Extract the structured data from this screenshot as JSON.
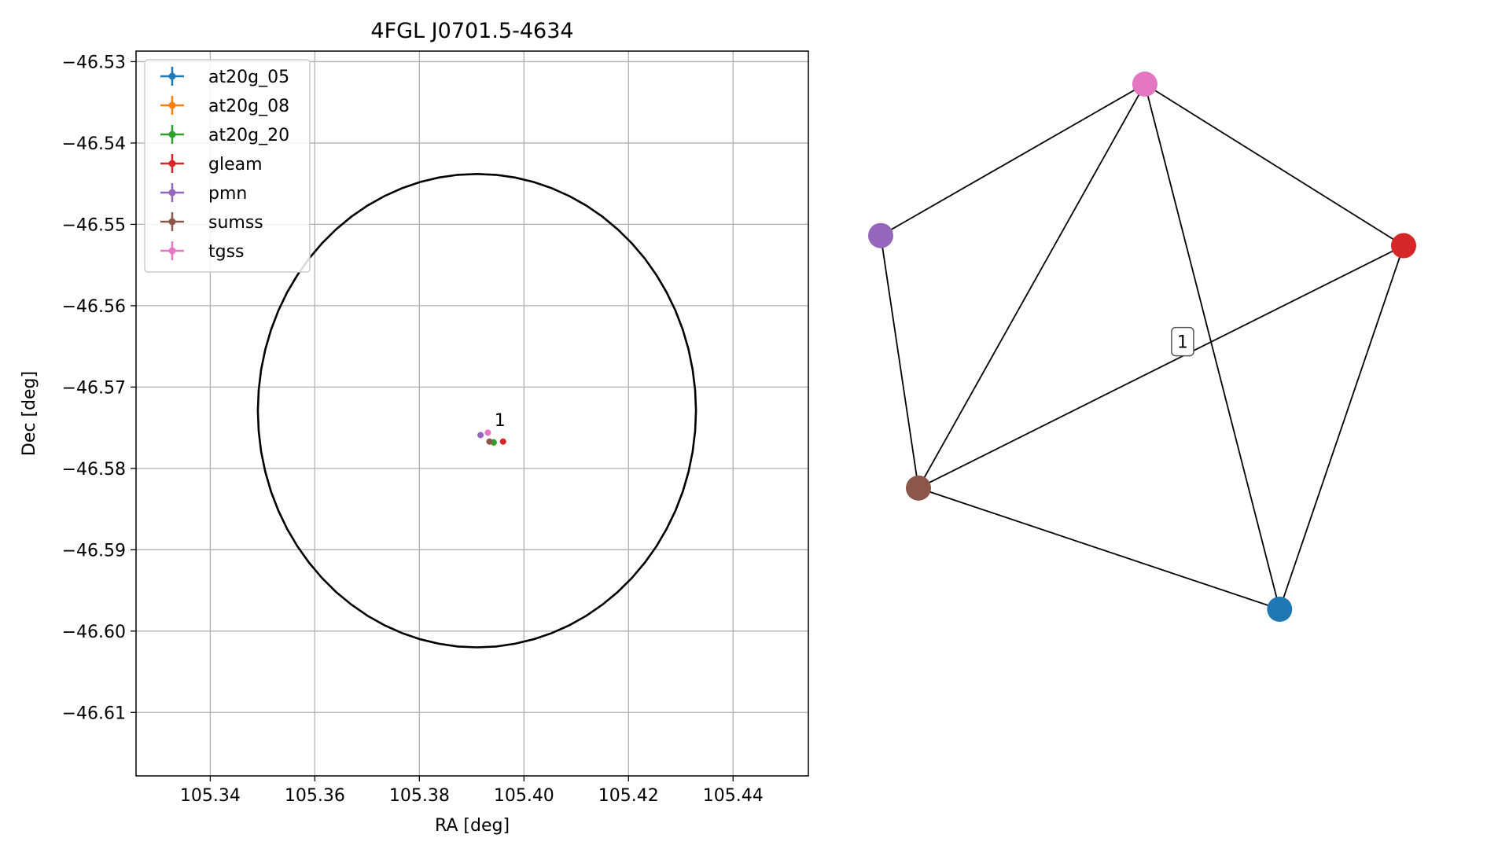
{
  "chart_data": [
    {
      "type": "scatter",
      "title": "4FGL J0701.5-4634",
      "xlabel": "RA [deg]",
      "ylabel": "Dec [deg]",
      "xlim": [
        105.3258,
        105.4544
      ],
      "ylim": [
        -46.6178,
        -46.5287
      ],
      "xticks": [
        105.34,
        105.36,
        105.38,
        105.4,
        105.42,
        105.44
      ],
      "xtick_labels": [
        "105.34",
        "105.36",
        "105.38",
        "105.40",
        "105.42",
        "105.44"
      ],
      "yticks": [
        -46.53,
        -46.54,
        -46.55,
        -46.56,
        -46.57,
        -46.58,
        -46.59,
        -46.6,
        -46.61
      ],
      "ytick_labels": [
        "−46.53",
        "−46.54",
        "−46.55",
        "−46.56",
        "−46.57",
        "−46.58",
        "−46.59",
        "−46.60",
        "−46.61"
      ],
      "grid": true,
      "legend_placement": "upper-left",
      "ellipse": {
        "center": [
          105.391,
          -46.5729
        ],
        "semi_ra": 0.0419,
        "semi_dec": 0.0291
      },
      "series": [
        {
          "name": "at20g_05",
          "color": "#1f77b4",
          "points": [
            {
              "x": 105.3942,
              "y": -46.5768
            }
          ]
        },
        {
          "name": "at20g_08",
          "color": "#ff7f0e",
          "points": [
            {
              "x": 105.3942,
              "y": -46.5768
            }
          ]
        },
        {
          "name": "at20g_20",
          "color": "#2ca02c",
          "points": [
            {
              "x": 105.3942,
              "y": -46.5768
            }
          ]
        },
        {
          "name": "gleam",
          "color": "#d62728",
          "points": [
            {
              "x": 105.396,
              "y": -46.5767
            }
          ]
        },
        {
          "name": "pmn",
          "color": "#9467bd",
          "points": [
            {
              "x": 105.3917,
              "y": -46.5759
            }
          ]
        },
        {
          "name": "sumss",
          "color": "#8c564b",
          "points": [
            {
              "x": 105.3934,
              "y": -46.5767
            }
          ]
        },
        {
          "name": "tgss",
          "color": "#e377c2",
          "points": [
            {
              "x": 105.3931,
              "y": -46.5756
            }
          ]
        }
      ],
      "annotations": [
        {
          "text": "1",
          "x": 105.3954,
          "y": -46.5748
        }
      ]
    },
    {
      "type": "network",
      "nodes": [
        {
          "id": "tgss",
          "color": "#e377c2",
          "x": 0.52,
          "y": 0.92
        },
        {
          "id": "pmn",
          "color": "#9467bd",
          "x": 0.03,
          "y": 0.62
        },
        {
          "id": "gleam",
          "color": "#d62728",
          "x": 1.0,
          "y": 0.6
        },
        {
          "id": "sumss",
          "color": "#8c564b",
          "x": 0.1,
          "y": 0.12
        },
        {
          "id": "at20g",
          "color": "#1f77b4",
          "x": 0.77,
          "y": -0.12
        }
      ],
      "edges": [
        [
          "tgss",
          "pmn"
        ],
        [
          "tgss",
          "gleam"
        ],
        [
          "tgss",
          "sumss"
        ],
        [
          "tgss",
          "at20g"
        ],
        [
          "pmn",
          "sumss"
        ],
        [
          "gleam",
          "sumss"
        ],
        [
          "gleam",
          "at20g"
        ],
        [
          "sumss",
          "at20g"
        ]
      ],
      "label": {
        "text": "1",
        "x": 0.59,
        "y": 0.41
      }
    }
  ]
}
